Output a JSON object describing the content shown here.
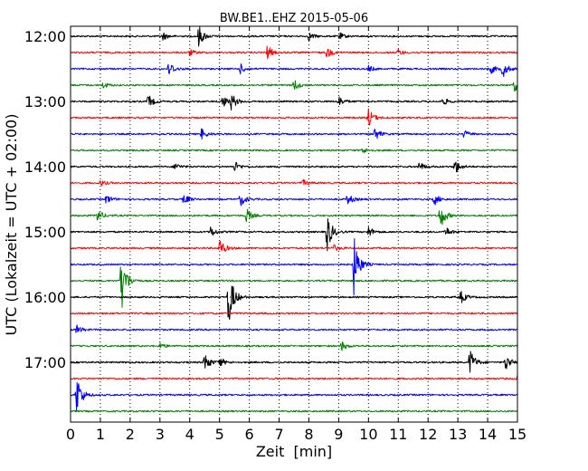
{
  "chart_data": {
    "type": "line",
    "title": "BW.BE1..EHZ 2015-05-06",
    "xlabel": "Zeit  [min]",
    "ylabel": "UTC (Lokalzeit = UTC + 02:00)",
    "xlim": [
      0,
      15
    ],
    "x_ticks": [
      "0",
      "1",
      "2",
      "3",
      "4",
      "5",
      "6",
      "7",
      "8",
      "9",
      "10",
      "11",
      "12",
      "13",
      "14",
      "15"
    ],
    "y_ticks": [
      "12:00",
      "13:00",
      "14:00",
      "15:00",
      "16:00",
      "17:00"
    ],
    "grid": true,
    "trace_colors": [
      "#000000",
      "#ff0000",
      "#0000ff",
      "#008000"
    ],
    "trace_interval_minutes": 15,
    "start_time": "12:00",
    "traces": [
      {
        "start": "12:00",
        "color": "#000000",
        "events": [
          {
            "t": 3.1,
            "a": 0.25
          },
          {
            "t": 4.3,
            "a": 0.7
          },
          {
            "t": 8.0,
            "a": 0.25
          },
          {
            "t": 9.0,
            "a": 0.25
          }
        ]
      },
      {
        "start": "12:15",
        "color": "#ff0000",
        "events": [
          {
            "t": 4.0,
            "a": 0.2
          },
          {
            "t": 6.6,
            "a": 0.45
          },
          {
            "t": 8.6,
            "a": 0.35
          },
          {
            "t": 11.0,
            "a": 0.2
          }
        ]
      },
      {
        "start": "12:30",
        "color": "#0000ff",
        "events": [
          {
            "t": 3.3,
            "a": 0.5
          },
          {
            "t": 5.7,
            "a": 0.3
          },
          {
            "t": 10.0,
            "a": 0.2
          },
          {
            "t": 14.1,
            "a": 0.3
          },
          {
            "t": 14.5,
            "a": 0.55
          }
        ]
      },
      {
        "start": "12:45",
        "color": "#008000",
        "events": [
          {
            "t": 1.1,
            "a": 0.2
          },
          {
            "t": 7.5,
            "a": 0.4
          },
          {
            "t": 14.9,
            "a": 0.4
          }
        ]
      },
      {
        "start": "13:00",
        "color": "#000000",
        "events": [
          {
            "t": 2.6,
            "a": 0.45
          },
          {
            "t": 5.1,
            "a": 0.4
          },
          {
            "t": 5.4,
            "a": 0.5
          },
          {
            "t": 9.0,
            "a": 0.35
          },
          {
            "t": 12.5,
            "a": 0.25
          }
        ]
      },
      {
        "start": "13:15",
        "color": "#ff0000",
        "events": [
          {
            "t": 10.0,
            "a": 0.6
          }
        ]
      },
      {
        "start": "13:30",
        "color": "#0000ff",
        "events": [
          {
            "t": 4.4,
            "a": 0.35
          },
          {
            "t": 10.2,
            "a": 0.45
          },
          {
            "t": 13.2,
            "a": 0.25
          }
        ]
      },
      {
        "start": "13:45",
        "color": "#008000",
        "events": [
          {
            "t": 9.8,
            "a": 0.2
          }
        ]
      },
      {
        "start": "14:00",
        "color": "#000000",
        "events": [
          {
            "t": 3.5,
            "a": 0.25
          },
          {
            "t": 5.5,
            "a": 0.35
          },
          {
            "t": 11.7,
            "a": 0.3
          },
          {
            "t": 12.9,
            "a": 0.5
          }
        ]
      },
      {
        "start": "14:15",
        "color": "#ff0000",
        "events": [
          {
            "t": 1.0,
            "a": 0.2
          },
          {
            "t": 7.8,
            "a": 0.2
          }
        ]
      },
      {
        "start": "14:30",
        "color": "#0000ff",
        "events": [
          {
            "t": 1.2,
            "a": 0.3
          },
          {
            "t": 3.8,
            "a": 0.35
          },
          {
            "t": 5.7,
            "a": 0.45
          },
          {
            "t": 9.3,
            "a": 0.35
          },
          {
            "t": 12.2,
            "a": 0.4
          }
        ]
      },
      {
        "start": "14:45",
        "color": "#008000",
        "events": [
          {
            "t": 0.9,
            "a": 0.4
          },
          {
            "t": 5.9,
            "a": 0.45
          },
          {
            "t": 12.4,
            "a": 0.9
          }
        ]
      },
      {
        "start": "15:00",
        "color": "#000000",
        "events": [
          {
            "t": 4.7,
            "a": 0.35
          },
          {
            "t": 8.6,
            "a": 1.3
          },
          {
            "t": 10.0,
            "a": 0.35
          },
          {
            "t": 12.6,
            "a": 0.3
          }
        ]
      },
      {
        "start": "15:15",
        "color": "#ff0000",
        "events": [
          {
            "t": 5.0,
            "a": 0.6
          },
          {
            "t": 8.8,
            "a": 0.25
          }
        ]
      },
      {
        "start": "15:30",
        "color": "#0000ff",
        "events": [
          {
            "t": 9.5,
            "a": 2.0
          }
        ]
      },
      {
        "start": "15:45",
        "color": "#008000",
        "events": [
          {
            "t": 1.7,
            "a": 2.0
          }
        ]
      },
      {
        "start": "16:00",
        "color": "#000000",
        "events": [
          {
            "t": 5.3,
            "a": 2.0
          },
          {
            "t": 13.1,
            "a": 0.4
          }
        ]
      },
      {
        "start": "16:15",
        "color": "#ff0000",
        "events": []
      },
      {
        "start": "16:30",
        "color": "#0000ff",
        "events": [
          {
            "t": 0.2,
            "a": 0.3
          }
        ]
      },
      {
        "start": "16:45",
        "color": "#008000",
        "events": [
          {
            "t": 3.0,
            "a": 0.2
          },
          {
            "t": 9.1,
            "a": 0.3
          }
        ]
      },
      {
        "start": "17:00",
        "color": "#000000",
        "events": [
          {
            "t": 4.5,
            "a": 0.65
          },
          {
            "t": 5.0,
            "a": 0.3
          },
          {
            "t": 13.4,
            "a": 0.9
          },
          {
            "t": 14.6,
            "a": 0.55
          }
        ]
      },
      {
        "start": "17:15",
        "color": "#ff0000",
        "events": [
          {
            "t": 15.0,
            "a": 0.3
          }
        ]
      },
      {
        "start": "17:30",
        "color": "#0000ff",
        "events": [
          {
            "t": 0.2,
            "a": 1.4
          }
        ]
      },
      {
        "start": "17:45",
        "color": "#008000",
        "events": []
      }
    ]
  }
}
